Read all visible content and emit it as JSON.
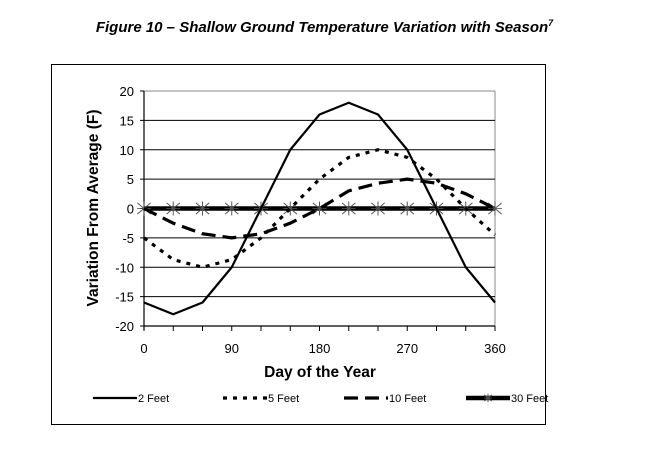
{
  "figure": {
    "title": "Figure 10 – Shallow Ground Temperature Variation with Season",
    "title_superscript": "7"
  },
  "chart_data": {
    "type": "line",
    "title": "Figure 10 – Shallow Ground Temperature Variation with Season",
    "xlabel": "Day of the Year",
    "ylabel": "Variation From Average (F)",
    "xlim": [
      0,
      360
    ],
    "ylim": [
      -20,
      20
    ],
    "x_ticks": [
      0,
      90,
      180,
      270,
      360
    ],
    "x_minor_step": 30,
    "y_ticks": [
      -20,
      -15,
      -10,
      -5,
      0,
      5,
      10,
      15,
      20
    ],
    "grid": "horizontal",
    "legend_position": "bottom",
    "x": [
      0,
      30,
      60,
      90,
      120,
      150,
      180,
      210,
      240,
      270,
      300,
      330,
      360
    ],
    "series": [
      {
        "name": "2 Feet",
        "style": "solid",
        "values": [
          -16,
          -18,
          -16,
          -10,
          0,
          10,
          16,
          18,
          16,
          10,
          0,
          -10,
          -16
        ]
      },
      {
        "name": "5 Feet",
        "style": "dotted",
        "values": [
          -5,
          -8.7,
          -10,
          -8.7,
          -5,
          0,
          5,
          8.7,
          10,
          8.7,
          5,
          0,
          -4.5
        ]
      },
      {
        "name": "10 Feet",
        "style": "dashed",
        "values": [
          0,
          -2.5,
          -4.3,
          -5,
          -4.3,
          -2.5,
          0,
          3,
          4.3,
          5,
          4.3,
          2.5,
          0
        ]
      },
      {
        "name": "30 Feet",
        "style": "solid-asterisk",
        "values": [
          0,
          0,
          0,
          0,
          0,
          0,
          0,
          0,
          0,
          0,
          0,
          0,
          0
        ]
      }
    ]
  },
  "colors": {
    "line": "#000000",
    "grid": "#000000",
    "marker": "#555555",
    "frame": "#000000"
  }
}
